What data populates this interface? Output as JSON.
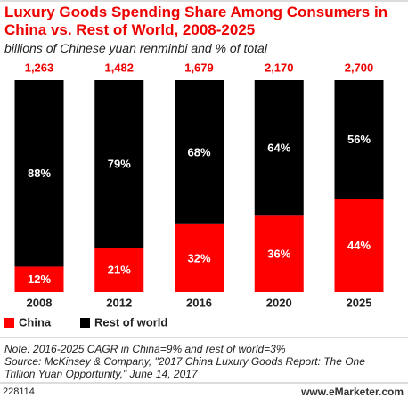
{
  "chart_data": {
    "type": "stacked_bar",
    "title": "Luxury Goods Spending Share Among Consumers in China vs. Rest of World, 2008-2025",
    "subtitle": "billions of Chinese yuan renminbi and % of total",
    "categories": [
      "2008",
      "2012",
      "2016",
      "2020",
      "2025"
    ],
    "series": [
      {
        "name": "China",
        "color": "#ff0000",
        "values": [
          12,
          21,
          32,
          36,
          44
        ],
        "value_labels": [
          "12%",
          "21%",
          "32%",
          "36%",
          "44%"
        ]
      },
      {
        "name": "Rest of world",
        "color": "#000000",
        "values": [
          88,
          79,
          68,
          64,
          56
        ],
        "value_labels": [
          "88%",
          "79%",
          "68%",
          "64%",
          "56%"
        ]
      }
    ],
    "totals": {
      "values": [
        1263,
        1482,
        1679,
        2170,
        2700
      ],
      "value_labels": [
        "1,263",
        "1,482",
        "1,679",
        "2,170",
        "2,700"
      ]
    },
    "note": "Note: 2016-2025 CAGR in China=9% and rest of world=3%",
    "source": "Source: McKinsey & Company, \"2017 China Luxury Goods Report: The One Trillion Yuan Opportunity,\" June 14, 2017",
    "footer_id": "228114",
    "footer_brand": "www.eMarketer.com"
  }
}
